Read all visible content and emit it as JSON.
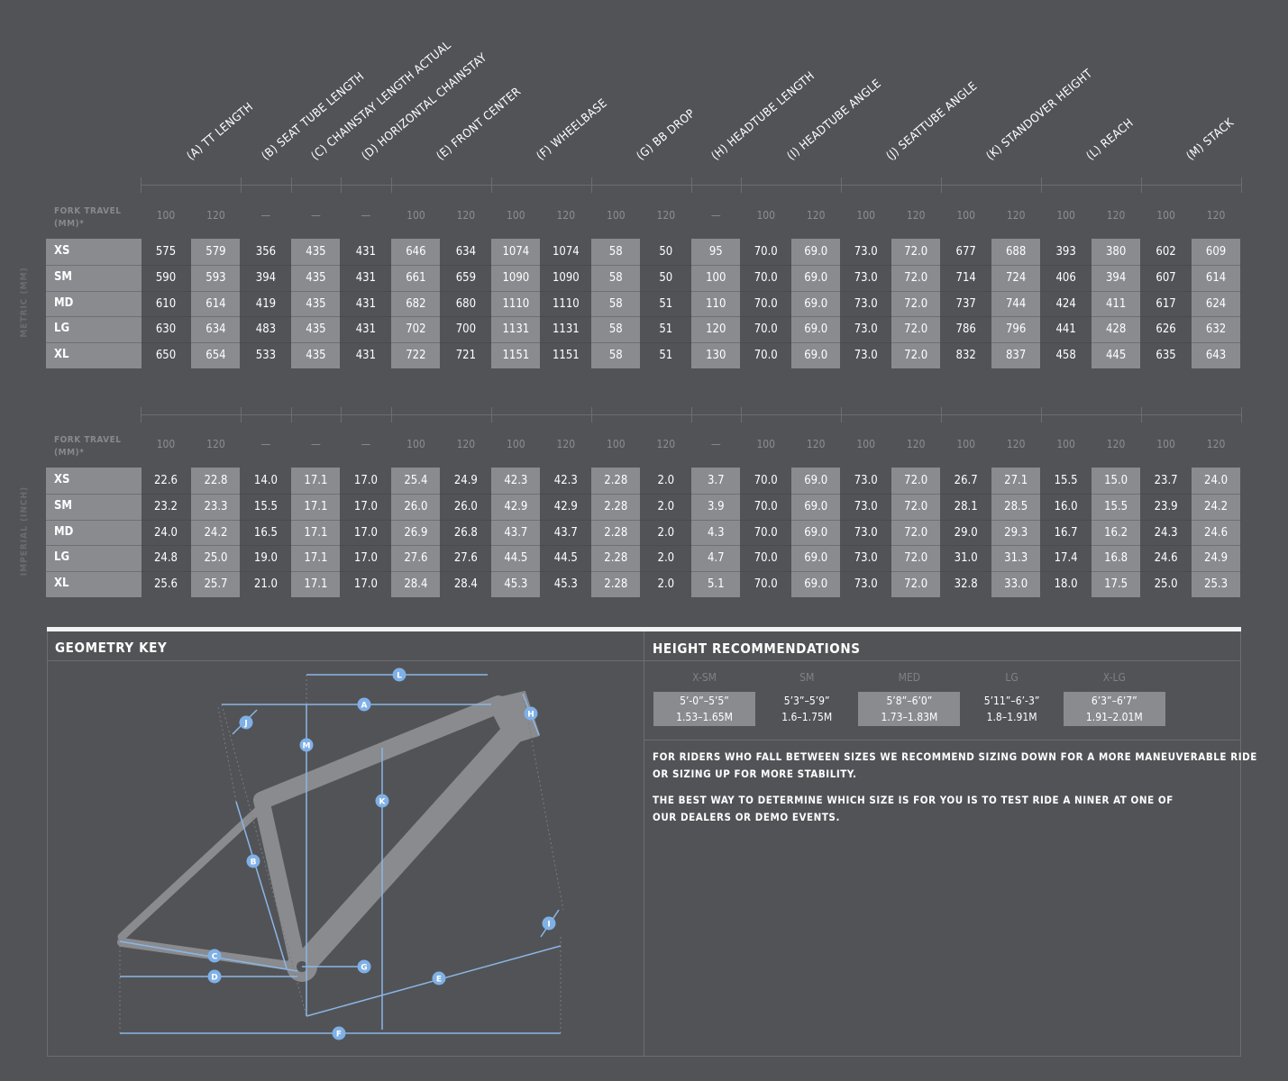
{
  "headers": [
    "(A) TT LENGTH",
    "(B) SEAT TUBE LENGTH",
    "(C) CHAINSTAY LENGTH ACTUAL",
    "(D) HORIZONTAL CHAINSTAY",
    "(E) FRONT CENTER",
    "(F) WHEELBASE",
    "(G) BB DROP",
    "(H) HEADTUBE LENGTH",
    "(I) HEADTUBE ANGLE",
    "(J) SEATTUBE ANGLE",
    "(K) STANDOVER HEIGHT",
    "(L) REACH",
    "(M) STACK"
  ],
  "metric": {
    "label": "METRIC (MM)",
    "fork_travel_label": "FORK TRAVEL (MM)*",
    "fork_travel": [
      "100",
      "120",
      "—",
      "—",
      "—",
      "100",
      "120",
      "100",
      "120",
      "100",
      "120",
      "—",
      "100",
      "120",
      "100",
      "120",
      "100",
      "120",
      "100",
      "120",
      "100",
      "120"
    ],
    "rows": [
      {
        "size": "XS",
        "values": [
          "575",
          "579",
          "356",
          "435",
          "431",
          "646",
          "634",
          "1074",
          "1074",
          "58",
          "50",
          "95",
          "70.0",
          "69.0",
          "73.0",
          "72.0",
          "677",
          "688",
          "393",
          "380",
          "602",
          "609"
        ]
      },
      {
        "size": "SM",
        "values": [
          "590",
          "593",
          "394",
          "435",
          "431",
          "661",
          "659",
          "1090",
          "1090",
          "58",
          "50",
          "100",
          "70.0",
          "69.0",
          "73.0",
          "72.0",
          "714",
          "724",
          "406",
          "394",
          "607",
          "614"
        ]
      },
      {
        "size": "MD",
        "values": [
          "610",
          "614",
          "419",
          "435",
          "431",
          "682",
          "680",
          "1110",
          "1110",
          "58",
          "51",
          "110",
          "70.0",
          "69.0",
          "73.0",
          "72.0",
          "737",
          "744",
          "424",
          "411",
          "617",
          "624"
        ]
      },
      {
        "size": "LG",
        "values": [
          "630",
          "634",
          "483",
          "435",
          "431",
          "702",
          "700",
          "1131",
          "1131",
          "58",
          "51",
          "120",
          "70.0",
          "69.0",
          "73.0",
          "72.0",
          "786",
          "796",
          "441",
          "428",
          "626",
          "632"
        ]
      },
      {
        "size": "XL",
        "values": [
          "650",
          "654",
          "533",
          "435",
          "431",
          "722",
          "721",
          "1151",
          "1151",
          "58",
          "51",
          "130",
          "70.0",
          "69.0",
          "73.0",
          "72.0",
          "832",
          "837",
          "458",
          "445",
          "635",
          "643"
        ]
      }
    ]
  },
  "imperial": {
    "label": "IMPERIAL (INCH)",
    "fork_travel_label": "FORK TRAVEL (MM)*",
    "fork_travel": [
      "100",
      "120",
      "—",
      "—",
      "—",
      "100",
      "120",
      "100",
      "120",
      "100",
      "120",
      "—",
      "100",
      "120",
      "100",
      "120",
      "100",
      "120",
      "100",
      "120",
      "100",
      "120"
    ],
    "rows": [
      {
        "size": "XS",
        "values": [
          "22.6",
          "22.8",
          "14.0",
          "17.1",
          "17.0",
          "25.4",
          "24.9",
          "42.3",
          "42.3",
          "2.28",
          "2.0",
          "3.7",
          "70.0",
          "69.0",
          "73.0",
          "72.0",
          "26.7",
          "27.1",
          "15.5",
          "15.0",
          "23.7",
          "24.0"
        ]
      },
      {
        "size": "SM",
        "values": [
          "23.2",
          "23.3",
          "15.5",
          "17.1",
          "17.0",
          "26.0",
          "26.0",
          "42.9",
          "42.9",
          "2.28",
          "2.0",
          "3.9",
          "70.0",
          "69.0",
          "73.0",
          "72.0",
          "28.1",
          "28.5",
          "16.0",
          "15.5",
          "23.9",
          "24.2"
        ]
      },
      {
        "size": "MD",
        "values": [
          "24.0",
          "24.2",
          "16.5",
          "17.1",
          "17.0",
          "26.9",
          "26.8",
          "43.7",
          "43.7",
          "2.28",
          "2.0",
          "4.3",
          "70.0",
          "69.0",
          "73.0",
          "72.0",
          "29.0",
          "29.3",
          "16.7",
          "16.2",
          "24.3",
          "24.6"
        ]
      },
      {
        "size": "LG",
        "values": [
          "24.8",
          "25.0",
          "19.0",
          "17.1",
          "17.0",
          "27.6",
          "27.6",
          "44.5",
          "44.5",
          "2.28",
          "2.0",
          "4.7",
          "70.0",
          "69.0",
          "73.0",
          "72.0",
          "31.0",
          "31.3",
          "17.4",
          "16.8",
          "24.6",
          "24.9"
        ]
      },
      {
        "size": "XL",
        "values": [
          "25.6",
          "25.7",
          "21.0",
          "17.1",
          "17.0",
          "28.4",
          "28.4",
          "45.3",
          "45.3",
          "2.28",
          "2.0",
          "5.1",
          "70.0",
          "69.0",
          "73.0",
          "72.0",
          "32.8",
          "33.0",
          "18.0",
          "17.5",
          "25.0",
          "25.3"
        ]
      }
    ]
  },
  "geometry_key": {
    "title": "GEOMETRY KEY",
    "markers": [
      "L",
      "A",
      "J",
      "H",
      "M",
      "K",
      "B",
      "I",
      "C",
      "G",
      "D",
      "E",
      "F"
    ]
  },
  "height_recommendations": {
    "title": "HEIGHT RECOMMENDATIONS",
    "sizes": [
      {
        "size": "X-SM",
        "heights": "5’-0”–5’5”",
        "meters": "1.53–1.65M"
      },
      {
        "size": "SM",
        "heights": "5’3”–5’9”",
        "meters": "1.6–1.75M"
      },
      {
        "size": "MED",
        "heights": "5’8”–6’0”",
        "meters": "1.73–1.83M"
      },
      {
        "size": "LG",
        "heights": "5’11”–6’-3”",
        "meters": "1.8–1.91M"
      },
      {
        "size": "X-LG",
        "heights": "6’3”–6’7”",
        "meters": "1.91–2.01M"
      }
    ],
    "notes": [
      [
        "FOR RIDERS WHO FALL BETWEEN SIZES WE RECOMMEND SIZING DOWN FOR A MORE MANEUVERABLE RIDE",
        "OR SIZING UP FOR MORE STABILITY."
      ],
      [
        "THE BEST WAY TO DETERMINE WHICH SIZE IS FOR YOU IS TO TEST RIDE A NINER AT ONE OF",
        "OUR DEALERS OR DEMO EVENTS."
      ]
    ]
  }
}
